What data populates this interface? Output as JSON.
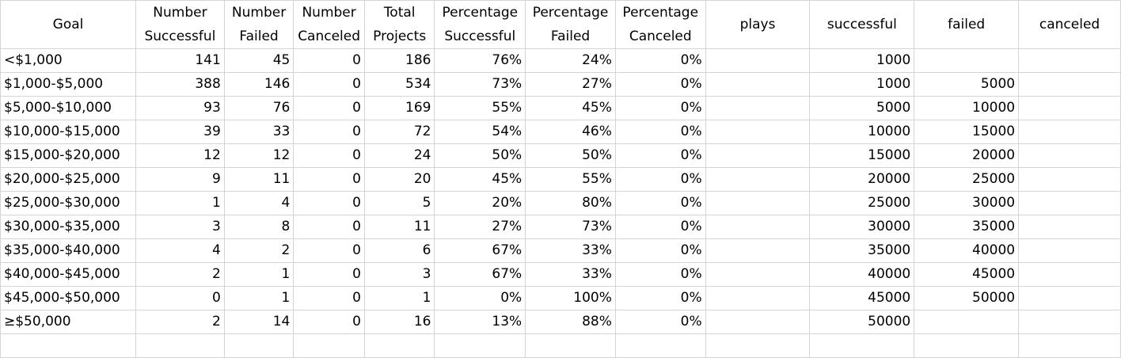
{
  "headers": {
    "goal": "Goal",
    "number_successful": [
      "Number",
      "Successful"
    ],
    "number_failed": [
      "Number",
      "Failed"
    ],
    "number_canceled": [
      "Number",
      "Canceled"
    ],
    "total_projects": [
      "Total",
      "Projects"
    ],
    "pct_successful": [
      "Percentage",
      "Successful"
    ],
    "pct_failed": [
      "Percentage",
      "Failed"
    ],
    "pct_canceled": [
      "Percentage",
      "Canceled"
    ],
    "plays": "plays",
    "successful": "successful",
    "failed": "failed",
    "canceled": "canceled"
  },
  "rows": [
    {
      "goal": "<$1,000",
      "ns": "141",
      "nf": "45",
      "nc": "0",
      "tp": "186",
      "ps": "76%",
      "pf": "24%",
      "pc": "0%",
      "plays": "",
      "successful": "1000",
      "failed": "",
      "canceled": ""
    },
    {
      "goal": "$1,000-$5,000",
      "ns": "388",
      "nf": "146",
      "nc": "0",
      "tp": "534",
      "ps": "73%",
      "pf": "27%",
      "pc": "0%",
      "plays": "",
      "successful": "1000",
      "failed": "5000",
      "canceled": ""
    },
    {
      "goal": "$5,000-$10,000",
      "ns": "93",
      "nf": "76",
      "nc": "0",
      "tp": "169",
      "ps": "55%",
      "pf": "45%",
      "pc": "0%",
      "plays": "",
      "successful": "5000",
      "failed": "10000",
      "canceled": ""
    },
    {
      "goal": "$10,000-$15,000",
      "ns": "39",
      "nf": "33",
      "nc": "0",
      "tp": "72",
      "ps": "54%",
      "pf": "46%",
      "pc": "0%",
      "plays": "",
      "successful": "10000",
      "failed": "15000",
      "canceled": ""
    },
    {
      "goal": "$15,000-$20,000",
      "ns": "12",
      "nf": "12",
      "nc": "0",
      "tp": "24",
      "ps": "50%",
      "pf": "50%",
      "pc": "0%",
      "plays": "",
      "successful": "15000",
      "failed": "20000",
      "canceled": ""
    },
    {
      "goal": "$20,000-$25,000",
      "ns": "9",
      "nf": "11",
      "nc": "0",
      "tp": "20",
      "ps": "45%",
      "pf": "55%",
      "pc": "0%",
      "plays": "",
      "successful": "20000",
      "failed": "25000",
      "canceled": ""
    },
    {
      "goal": "$25,000-$30,000",
      "ns": "1",
      "nf": "4",
      "nc": "0",
      "tp": "5",
      "ps": "20%",
      "pf": "80%",
      "pc": "0%",
      "plays": "",
      "successful": "25000",
      "failed": "30000",
      "canceled": ""
    },
    {
      "goal": "$30,000-$35,000",
      "ns": "3",
      "nf": "8",
      "nc": "0",
      "tp": "11",
      "ps": "27%",
      "pf": "73%",
      "pc": "0%",
      "plays": "",
      "successful": "30000",
      "failed": "35000",
      "canceled": ""
    },
    {
      "goal": "$35,000-$40,000",
      "ns": "4",
      "nf": "2",
      "nc": "0",
      "tp": "6",
      "ps": "67%",
      "pf": "33%",
      "pc": "0%",
      "plays": "",
      "successful": "35000",
      "failed": "40000",
      "canceled": ""
    },
    {
      "goal": "$40,000-$45,000",
      "ns": "2",
      "nf": "1",
      "nc": "0",
      "tp": "3",
      "ps": "67%",
      "pf": "33%",
      "pc": "0%",
      "plays": "",
      "successful": "40000",
      "failed": "45000",
      "canceled": ""
    },
    {
      "goal": "$45,000-$50,000",
      "ns": "0",
      "nf": "1",
      "nc": "0",
      "tp": "1",
      "ps": "0%",
      "pf": "100%",
      "pc": "0%",
      "plays": "",
      "successful": "45000",
      "failed": "50000",
      "canceled": ""
    },
    {
      "goal": "≥$50,000",
      "ns": "2",
      "nf": "14",
      "nc": "0",
      "tp": "16",
      "ps": "13%",
      "pf": "88%",
      "pc": "0%",
      "plays": "",
      "successful": "50000",
      "failed": "",
      "canceled": ""
    }
  ]
}
